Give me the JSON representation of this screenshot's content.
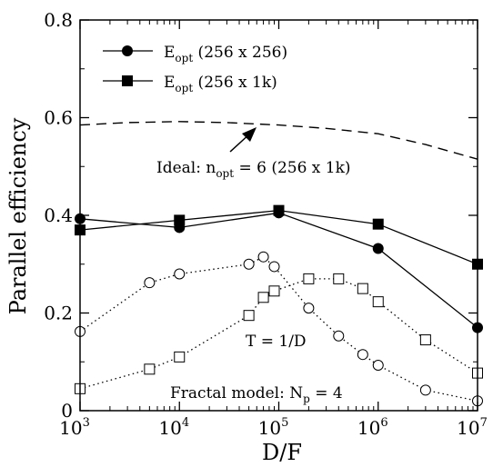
{
  "chart_data": {
    "type": "line",
    "xlabel": "D/F",
    "ylabel": "Parallel efficiency",
    "x_scale": "log",
    "xlim": [
      1000,
      10000000
    ],
    "ylim": [
      0,
      0.8
    ],
    "x_ticks": [
      {
        "value": 1000,
        "base": "10",
        "exp": "3"
      },
      {
        "value": 10000,
        "base": "10",
        "exp": "4"
      },
      {
        "value": 100000,
        "base": "10",
        "exp": "5"
      },
      {
        "value": 1000000,
        "base": "10",
        "exp": "6"
      },
      {
        "value": 10000000,
        "base": "10",
        "exp": "7"
      }
    ],
    "y_ticks": [
      {
        "value": 0,
        "label": "0"
      },
      {
        "value": 0.2,
        "label": "0.2"
      },
      {
        "value": 0.4,
        "label": "0.4"
      },
      {
        "value": 0.6,
        "label": "0.6"
      },
      {
        "value": 0.8,
        "label": "0.8"
      }
    ],
    "grid": false,
    "legend_position": "top-left",
    "series": [
      {
        "key": "opt256",
        "legend": {
          "main": "E",
          "sub": "opt",
          "rest": " (256 x 256)"
        },
        "marker": "filled-circle",
        "line": "solid",
        "x": [
          1000,
          10000,
          100000,
          1000000,
          10000000
        ],
        "y": [
          0.393,
          0.375,
          0.405,
          0.332,
          0.17
        ]
      },
      {
        "key": "opt1k",
        "legend": {
          "main": "E",
          "sub": "opt",
          "rest": " (256 x 1k)"
        },
        "marker": "filled-square",
        "line": "solid",
        "x": [
          1000,
          10000,
          100000,
          1000000,
          10000000
        ],
        "y": [
          0.37,
          0.39,
          0.41,
          0.382,
          0.3
        ]
      },
      {
        "key": "ideal",
        "marker": "none",
        "line": "dashed",
        "x": [
          1000,
          3000,
          10000,
          30000,
          100000,
          300000,
          1000000,
          3000000,
          10000000
        ],
        "y": [
          0.585,
          0.59,
          0.592,
          0.59,
          0.585,
          0.578,
          0.567,
          0.545,
          0.515
        ]
      },
      {
        "key": "t_circles",
        "marker": "open-circle",
        "line": "dotted",
        "x": [
          1000,
          5000,
          10000,
          50000,
          70000,
          90000,
          200000,
          400000,
          700000,
          1000000,
          3000000,
          10000000
        ],
        "y": [
          0.162,
          0.262,
          0.28,
          0.3,
          0.315,
          0.295,
          0.21,
          0.153,
          0.115,
          0.093,
          0.042,
          0.02
        ]
      },
      {
        "key": "t_squares",
        "marker": "open-square",
        "line": "dotted",
        "x": [
          1000,
          5000,
          10000,
          50000,
          70000,
          90000,
          200000,
          400000,
          700000,
          1000000,
          3000000,
          10000000
        ],
        "y": [
          0.045,
          0.085,
          0.11,
          0.195,
          0.232,
          0.245,
          0.27,
          0.27,
          0.25,
          0.223,
          0.145,
          0.077
        ]
      }
    ],
    "annotations": {
      "ideal": {
        "prefix": "Ideal: n",
        "sub": "opt",
        "rest": " = 6 (256 x 1k)"
      },
      "t_label": "T = 1/D",
      "fractal": {
        "prefix": "Fractal model: N",
        "sub": "p",
        "rest": " = 4"
      }
    },
    "colors": {
      "ink": "#000000",
      "background": "#ffffff"
    }
  }
}
